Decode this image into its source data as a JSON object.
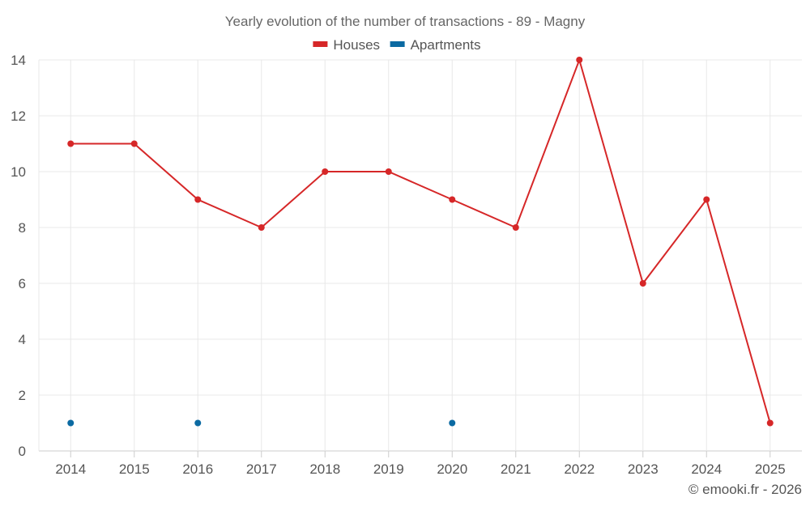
{
  "chart_data": {
    "type": "line",
    "title": "Yearly evolution of the number of transactions - 89 - Magny",
    "categories": [
      "2014",
      "2015",
      "2016",
      "2017",
      "2018",
      "2019",
      "2020",
      "2021",
      "2022",
      "2023",
      "2024",
      "2025"
    ],
    "series": [
      {
        "name": "Houses",
        "color": "#d62728",
        "values": [
          11,
          11,
          9,
          8,
          10,
          10,
          9,
          8,
          14,
          6,
          9,
          1
        ]
      },
      {
        "name": "Apartments",
        "color": "#0b6aa2",
        "values": [
          1,
          null,
          1,
          null,
          null,
          null,
          1,
          null,
          null,
          null,
          null,
          null
        ]
      }
    ],
    "ylim": [
      0,
      14
    ],
    "yticks": [
      0,
      2,
      4,
      6,
      8,
      10,
      12,
      14
    ],
    "xlabel": "",
    "ylabel": "",
    "grid": true,
    "legend": "top-center"
  },
  "credit": "© emooki.fr - 2026"
}
